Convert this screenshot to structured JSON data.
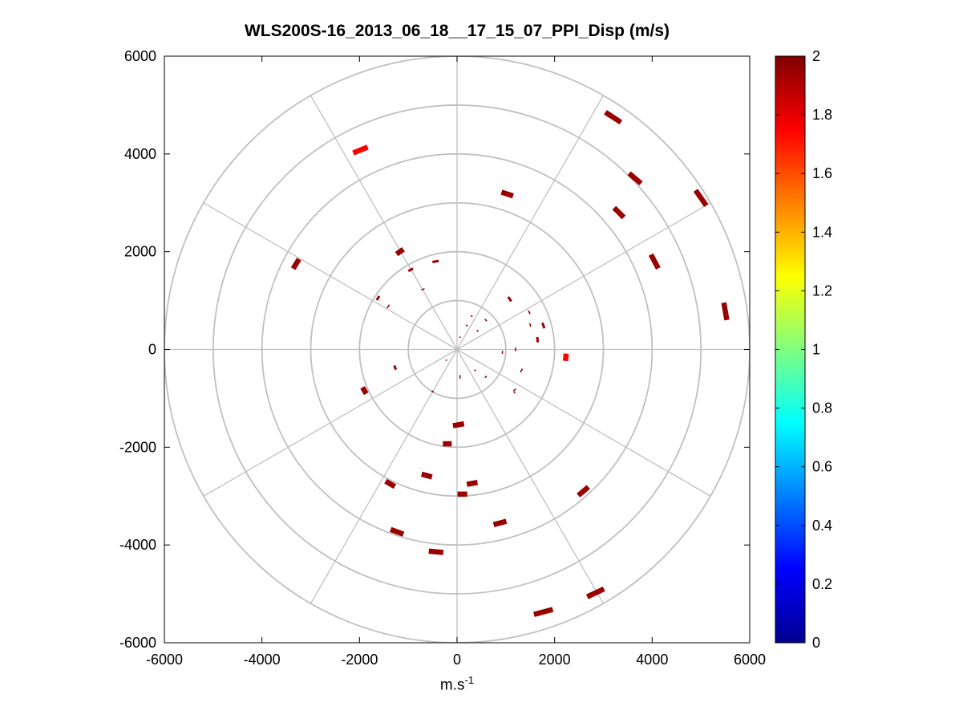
{
  "chart_data": {
    "type": "scatter",
    "title": "WLS200S-16_2013_06_18__17_15_07_PPI_Disp (m/s)",
    "xlabel": {
      "base": "m.s",
      "superscript": "-1"
    },
    "ylabel": "",
    "xlim": [
      -6000,
      6000
    ],
    "ylim": [
      -6000,
      6000
    ],
    "xticks": [
      "-6000",
      "-4000",
      "-2000",
      "0",
      "2000",
      "4000",
      "6000"
    ],
    "yticks": [
      "6000",
      "4000",
      "2000",
      "0",
      "-2000",
      "-4000",
      "-6000"
    ],
    "polar_grid": {
      "ring_radii": [
        1000,
        2000,
        3000,
        4000,
        5000,
        6000
      ],
      "spoke_angles_deg": [
        0,
        30,
        60,
        90,
        120,
        150,
        180,
        210,
        240,
        270,
        300,
        330
      ]
    },
    "grid": true,
    "colorbar": {
      "colormap": "jet",
      "range": [
        0,
        2
      ],
      "ticks": [
        "0",
        "0.2",
        "0.4",
        "0.6",
        "0.8",
        "1",
        "1.2",
        "1.4",
        "1.6",
        "1.8",
        "2"
      ]
    },
    "points": [
      {
        "x": 3200,
        "y": 4750,
        "angle": -33,
        "length": 380,
        "value": 1.95
      },
      {
        "x": 3650,
        "y": 3500,
        "angle": -40,
        "length": 320,
        "value": 1.95
      },
      {
        "x": 5000,
        "y": 3100,
        "angle": -55,
        "length": 380,
        "value": 1.95
      },
      {
        "x": 3320,
        "y": 2800,
        "angle": -45,
        "length": 280,
        "value": 1.95
      },
      {
        "x": 4050,
        "y": 1800,
        "angle": -62,
        "length": 320,
        "value": 1.95
      },
      {
        "x": 5500,
        "y": 780,
        "angle": -80,
        "length": 360,
        "value": 1.95
      },
      {
        "x": 1030,
        "y": 3180,
        "angle": -18,
        "length": 250,
        "value": 1.95
      },
      {
        "x": -1980,
        "y": 4080,
        "angle": 22,
        "length": 320,
        "value": 1.75
      },
      {
        "x": -3300,
        "y": 1750,
        "angle": 58,
        "length": 230,
        "value": 1.95
      },
      {
        "x": -1170,
        "y": 2000,
        "angle": 35,
        "length": 170,
        "value": 1.95
      },
      {
        "x": -950,
        "y": 1630,
        "angle": 30,
        "length": 110,
        "value": 1.95
      },
      {
        "x": -440,
        "y": 1800,
        "angle": 10,
        "length": 130,
        "value": 1.95
      },
      {
        "x": -1620,
        "y": 1050,
        "angle": 60,
        "length": 100,
        "value": 1.95
      },
      {
        "x": -700,
        "y": 1230,
        "angle": 20,
        "length": 70,
        "value": 1.95
      },
      {
        "x": -1410,
        "y": 880,
        "angle": 60,
        "length": 80,
        "value": 1.95
      },
      {
        "x": 1080,
        "y": 1030,
        "angle": -55,
        "length": 110,
        "value": 1.95
      },
      {
        "x": 1480,
        "y": 760,
        "angle": -60,
        "length": 80,
        "value": 1.95
      },
      {
        "x": 1500,
        "y": 500,
        "angle": -70,
        "length": 70,
        "value": 1.95
      },
      {
        "x": 1770,
        "y": 490,
        "angle": -70,
        "length": 120,
        "value": 1.95
      },
      {
        "x": 1650,
        "y": 200,
        "angle": -85,
        "length": 110,
        "value": 1.95
      },
      {
        "x": 590,
        "y": 600,
        "angle": -45,
        "length": 60,
        "value": 1.95
      },
      {
        "x": 300,
        "y": 680,
        "angle": -20,
        "length": 40,
        "value": 1.95
      },
      {
        "x": 200,
        "y": 490,
        "angle": -35,
        "length": 40,
        "value": 1.95
      },
      {
        "x": 420,
        "y": 380,
        "angle": -45,
        "length": 40,
        "value": 1.95
      },
      {
        "x": 60,
        "y": 250,
        "angle": 0,
        "length": 30,
        "value": 1.95
      },
      {
        "x": 2230,
        "y": -160,
        "angle": -95,
        "length": 150,
        "value": 1.75
      },
      {
        "x": 1200,
        "y": 0,
        "angle": -90,
        "length": 70,
        "value": 1.95
      },
      {
        "x": 930,
        "y": -60,
        "angle": -95,
        "length": 60,
        "value": 1.95
      },
      {
        "x": -1270,
        "y": -370,
        "angle": 110,
        "length": 90,
        "value": 1.95
      },
      {
        "x": -1900,
        "y": -840,
        "angle": 120,
        "length": 150,
        "value": 1.95
      },
      {
        "x": -220,
        "y": -220,
        "angle": 45,
        "length": 30,
        "value": 1.95
      },
      {
        "x": 60,
        "y": -560,
        "angle": 90,
        "length": 70,
        "value": 1.95
      },
      {
        "x": 370,
        "y": -430,
        "angle": 45,
        "length": 40,
        "value": 1.95
      },
      {
        "x": 590,
        "y": -560,
        "angle": 45,
        "length": 50,
        "value": 1.95
      },
      {
        "x": 1320,
        "y": -430,
        "angle": 60,
        "length": 80,
        "value": 1.95
      },
      {
        "x": 1180,
        "y": -830,
        "angle": 45,
        "length": 70,
        "value": 1.95
      },
      {
        "x": 1180,
        "y": -880,
        "angle": 40,
        "length": 40,
        "value": 1.95
      },
      {
        "x": -500,
        "y": -860,
        "angle": -40,
        "length": 50,
        "value": 1.95
      },
      {
        "x": 30,
        "y": -1540,
        "angle": 10,
        "length": 230,
        "value": 1.95
      },
      {
        "x": -200,
        "y": -1930,
        "angle": 0,
        "length": 180,
        "value": 1.95
      },
      {
        "x": -1370,
        "y": -2750,
        "angle": -30,
        "length": 220,
        "value": 1.95
      },
      {
        "x": -620,
        "y": -2580,
        "angle": -15,
        "length": 220,
        "value": 1.95
      },
      {
        "x": 310,
        "y": -2740,
        "angle": 10,
        "length": 220,
        "value": 1.95
      },
      {
        "x": 110,
        "y": -2960,
        "angle": 0,
        "length": 200,
        "value": 1.95
      },
      {
        "x": 2590,
        "y": -2900,
        "angle": 40,
        "length": 270,
        "value": 1.95
      },
      {
        "x": -1230,
        "y": -3730,
        "angle": -20,
        "length": 280,
        "value": 1.95
      },
      {
        "x": 880,
        "y": -3550,
        "angle": 15,
        "length": 270,
        "value": 1.95
      },
      {
        "x": -430,
        "y": -4140,
        "angle": -5,
        "length": 300,
        "value": 1.95
      },
      {
        "x": 1770,
        "y": -5370,
        "angle": 15,
        "length": 400,
        "value": 1.95
      },
      {
        "x": 2840,
        "y": -4980,
        "angle": 25,
        "length": 380,
        "value": 1.95
      }
    ]
  }
}
